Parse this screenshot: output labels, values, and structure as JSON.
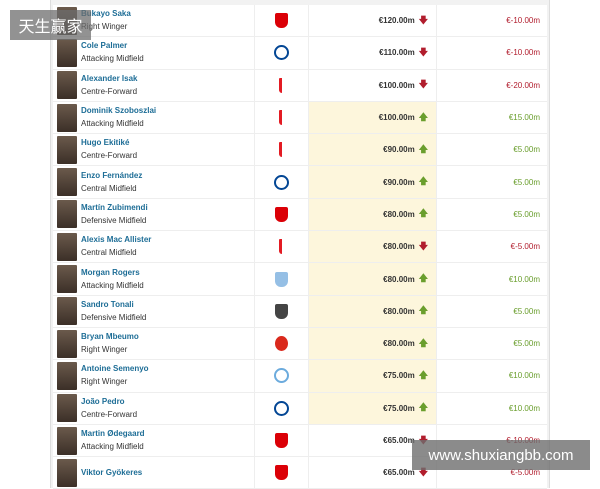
{
  "watermarks": {
    "top_left": "天生赢家",
    "bottom_right": "www.shuxiangbb.com"
  },
  "colors": {
    "player_name": "#1d6d96",
    "decrease": "#b11d2d",
    "increase": "#6a9e2d",
    "highlight": "#fdf6dc"
  },
  "players": [
    {
      "name": "Bukayo Saka",
      "position": "Right Winger",
      "club": "arsenal",
      "value": "€120.00m",
      "trend": "down",
      "change": "€-10.00m",
      "hl": false
    },
    {
      "name": "Cole Palmer",
      "position": "Attacking Midfield",
      "club": "chelsea",
      "value": "€110.00m",
      "trend": "down",
      "change": "€-10.00m",
      "hl": false
    },
    {
      "name": "Alexander Isak",
      "position": "Centre-Forward",
      "club": "liverpool",
      "value": "€100.00m",
      "trend": "down",
      "change": "€-20.00m",
      "hl": false
    },
    {
      "name": "Dominik Szoboszlai",
      "position": "Attacking Midfield",
      "club": "liverpool",
      "value": "€100.00m",
      "trend": "up",
      "change": "€15.00m",
      "hl": true
    },
    {
      "name": "Hugo Ekitiké",
      "position": "Centre-Forward",
      "club": "liverpool",
      "value": "€90.00m",
      "trend": "up",
      "change": "€5.00m",
      "hl": true
    },
    {
      "name": "Enzo Fernández",
      "position": "Central Midfield",
      "club": "chelsea",
      "value": "€90.00m",
      "trend": "up",
      "change": "€5.00m",
      "hl": true
    },
    {
      "name": "Martín Zubimendi",
      "position": "Defensive Midfield",
      "club": "arsenal",
      "value": "€80.00m",
      "trend": "up",
      "change": "€5.00m",
      "hl": true
    },
    {
      "name": "Alexis Mac Allister",
      "position": "Central Midfield",
      "club": "liverpool",
      "value": "€80.00m",
      "trend": "down",
      "change": "€-5.00m",
      "hl": true
    },
    {
      "name": "Morgan Rogers",
      "position": "Attacking Midfield",
      "club": "aston-villa",
      "value": "€80.00m",
      "trend": "up",
      "change": "€10.00m",
      "hl": true
    },
    {
      "name": "Sandro Tonali",
      "position": "Defensive Midfield",
      "club": "newcastle",
      "value": "€80.00m",
      "trend": "up",
      "change": "€5.00m",
      "hl": true
    },
    {
      "name": "Bryan Mbeumo",
      "position": "Right Winger",
      "club": "manchester-united",
      "value": "€80.00m",
      "trend": "up",
      "change": "€5.00m",
      "hl": true
    },
    {
      "name": "Antoine Semenyo",
      "position": "Right Winger",
      "club": "manchester-city",
      "value": "€75.00m",
      "trend": "up",
      "change": "€10.00m",
      "hl": true
    },
    {
      "name": "João Pedro",
      "position": "Centre-Forward",
      "club": "chelsea",
      "value": "€75.00m",
      "trend": "up",
      "change": "€10.00m",
      "hl": true
    },
    {
      "name": "Martin Ødegaard",
      "position": "Attacking Midfield",
      "club": "arsenal",
      "value": "€65.00m",
      "trend": "down",
      "change": "€-10.00m",
      "hl": false
    },
    {
      "name": "Viktor Gyökeres",
      "position": "",
      "club": "arsenal",
      "value": "€65.00m",
      "trend": "down",
      "change": "€-5.00m",
      "hl": false
    }
  ]
}
